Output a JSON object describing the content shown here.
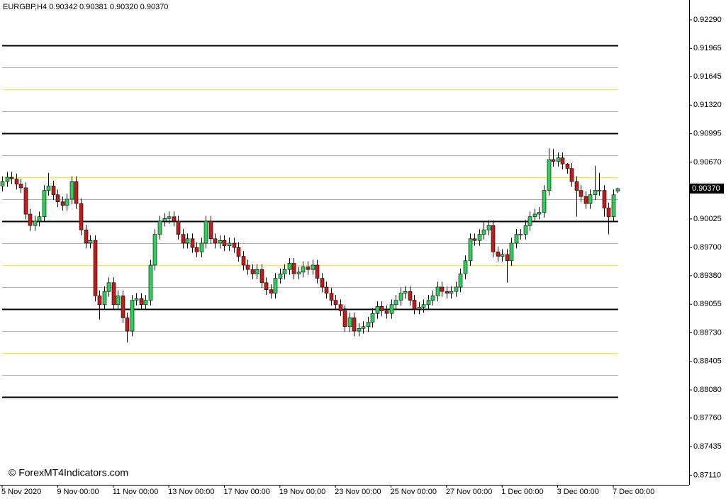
{
  "chart_data": {
    "type": "candlestick",
    "title": "EURGBP,H4  0.90342 0.90381 0.90320 0.90370",
    "watermark": "© ForexMT4Indicators.com",
    "up_color": "#2fcf5a",
    "down_color": "#c41a1a",
    "wick_color": "#000000",
    "categories": [
      "5 Nov 2020",
      null,
      null,
      null,
      null,
      null,
      null,
      null,
      null,
      null,
      null,
      null,
      "9 Nov 00:00",
      null,
      null,
      null,
      null,
      null,
      null,
      null,
      null,
      null,
      null,
      null,
      "11 Nov 00:00",
      null,
      null,
      null,
      null,
      null,
      null,
      null,
      null,
      null,
      null,
      null,
      "13 Nov 00:00",
      null,
      null,
      null,
      null,
      null,
      null,
      null,
      null,
      null,
      null,
      null,
      "17 Nov 00:00",
      null,
      null,
      null,
      null,
      null,
      null,
      null,
      null,
      null,
      null,
      null,
      "19 Nov 00:00",
      null,
      null,
      null,
      null,
      null,
      null,
      null,
      null,
      null,
      null,
      null,
      "23 Nov 00:00",
      null,
      null,
      null,
      null,
      null,
      null,
      null,
      null,
      null,
      null,
      null,
      "25 Nov 00:00",
      null,
      null,
      null,
      null,
      null,
      null,
      null,
      null,
      null,
      null,
      null,
      "27 Nov 00:00",
      null,
      null,
      null,
      null,
      null,
      null,
      null,
      null,
      null,
      null,
      null,
      "1 Dec 00:00",
      null,
      null,
      null,
      null,
      null,
      null,
      null,
      null,
      null,
      null,
      null,
      "3 Dec 00:00",
      null,
      null,
      null,
      null,
      null,
      null,
      null,
      null,
      null,
      null,
      null,
      "7 Dec 00:00",
      null
    ],
    "open": [
      0.904,
      0.9045,
      0.905,
      0.9048,
      0.9042,
      0.9038,
      0.9008,
      0.8995,
      0.9,
      0.9005,
      0.9035,
      0.904,
      0.903,
      0.9022,
      0.9018,
      0.9025,
      0.9045,
      0.902,
      0.899,
      0.8975,
      0.8978,
      0.8915,
      0.8905,
      0.892,
      0.893,
      0.8905,
      0.8915,
      0.889,
      0.8875,
      0.891,
      0.8912,
      0.8905,
      0.891,
      0.895,
      0.8985,
      0.9,
      0.9003,
      0.9005,
      0.9,
      0.8985,
      0.8975,
      0.898,
      0.897,
      0.8965,
      0.8975,
      0.9,
      0.898,
      0.8975,
      0.8978,
      0.8972,
      0.8975,
      0.897,
      0.896,
      0.895,
      0.8945,
      0.894,
      0.8945,
      0.893,
      0.8922,
      0.8918,
      0.8935,
      0.894,
      0.8945,
      0.8952,
      0.894,
      0.8942,
      0.8948,
      0.8945,
      0.895,
      0.8935,
      0.8925,
      0.8918,
      0.891,
      0.8905,
      0.8898,
      0.888,
      0.889,
      0.8875,
      0.8878,
      0.888,
      0.8885,
      0.8895,
      0.8903,
      0.8898,
      0.8895,
      0.8905,
      0.891,
      0.8918,
      0.892,
      0.891,
      0.89,
      0.8902,
      0.8905,
      0.891,
      0.8915,
      0.8925,
      0.892,
      0.8918,
      0.892,
      0.8925,
      0.894,
      0.8955,
      0.898,
      0.8978,
      0.8985,
      0.899,
      0.8995,
      0.8965,
      0.896,
      0.8962,
      0.8955,
      0.8975,
      0.8985,
      0.8985,
      0.8995,
      0.9005,
      0.9008,
      0.901,
      0.9035,
      0.907,
      0.9068,
      0.9072,
      0.9065,
      0.906,
      0.9045,
      0.9035,
      0.9028,
      0.902,
      0.903,
      0.9035,
      0.9035,
      0.9015,
      0.9005,
      0.90342
    ],
    "high": [
      0.9051,
      0.9056,
      0.9056,
      0.9054,
      0.9048,
      0.9044,
      0.9014,
      0.9006,
      0.9011,
      0.9041,
      0.9055,
      0.9046,
      0.9036,
      0.9028,
      0.9031,
      0.9051,
      0.9051,
      0.9026,
      0.8996,
      0.8984,
      0.8984,
      0.8921,
      0.8926,
      0.8936,
      0.8936,
      0.8921,
      0.8921,
      0.8896,
      0.8916,
      0.8918,
      0.8918,
      0.8916,
      0.8956,
      0.8991,
      0.9006,
      0.9009,
      0.9011,
      0.9011,
      0.9006,
      0.8991,
      0.8986,
      0.8986,
      0.8976,
      0.8981,
      0.9006,
      0.9006,
      0.8986,
      0.8984,
      0.8984,
      0.8981,
      0.8981,
      0.8976,
      0.8966,
      0.8956,
      0.8951,
      0.8951,
      0.8951,
      0.8936,
      0.8928,
      0.8941,
      0.8946,
      0.8951,
      0.8958,
      0.8958,
      0.8948,
      0.8954,
      0.8954,
      0.8956,
      0.8956,
      0.8941,
      0.8931,
      0.8924,
      0.8916,
      0.8911,
      0.8904,
      0.8896,
      0.8896,
      0.8884,
      0.8886,
      0.8891,
      0.8901,
      0.8909,
      0.8909,
      0.8904,
      0.8911,
      0.8916,
      0.8924,
      0.8926,
      0.8926,
      0.8916,
      0.8908,
      0.8911,
      0.8916,
      0.8921,
      0.8931,
      0.8931,
      0.8926,
      0.8926,
      0.8931,
      0.8946,
      0.8961,
      0.8986,
      0.8986,
      0.8991,
      0.9,
      0.9001,
      0.9001,
      0.8971,
      0.8968,
      0.8968,
      0.8981,
      0.8991,
      0.8991,
      0.9001,
      0.9011,
      0.9014,
      0.9016,
      0.9041,
      0.9083,
      0.9082,
      0.9078,
      0.9078,
      0.9066,
      0.9066,
      0.9051,
      0.9041,
      0.9034,
      0.9036,
      0.9063,
      0.9055,
      0.9041,
      0.9021,
      0.9036,
      0.90381
    ],
    "low": [
      0.9034,
      0.9039,
      0.9042,
      0.9036,
      0.9032,
      0.9002,
      0.8989,
      0.8989,
      0.8994,
      0.8999,
      0.9029,
      0.9024,
      0.9016,
      0.9012,
      0.9012,
      0.9019,
      0.9014,
      0.8984,
      0.8969,
      0.8969,
      0.8909,
      0.8888,
      0.8899,
      0.8914,
      0.8899,
      0.8899,
      0.8884,
      0.8862,
      0.8869,
      0.8904,
      0.8899,
      0.8899,
      0.8904,
      0.8944,
      0.8979,
      0.8994,
      0.8997,
      0.8994,
      0.8979,
      0.8969,
      0.8969,
      0.8964,
      0.8959,
      0.8959,
      0.8969,
      0.8974,
      0.8969,
      0.8969,
      0.8966,
      0.8966,
      0.8964,
      0.8954,
      0.8944,
      0.8939,
      0.8934,
      0.8934,
      0.8924,
      0.8916,
      0.8912,
      0.8912,
      0.8929,
      0.8934,
      0.8939,
      0.8934,
      0.8934,
      0.8936,
      0.8939,
      0.8939,
      0.8929,
      0.8919,
      0.8912,
      0.8904,
      0.8899,
      0.8892,
      0.8874,
      0.8874,
      0.8869,
      0.8869,
      0.8872,
      0.8874,
      0.8879,
      0.8889,
      0.8892,
      0.8889,
      0.8889,
      0.8899,
      0.8904,
      0.8912,
      0.8904,
      0.8894,
      0.8894,
      0.8896,
      0.8899,
      0.8904,
      0.8909,
      0.8914,
      0.8912,
      0.8912,
      0.8914,
      0.8919,
      0.8934,
      0.8949,
      0.8972,
      0.8972,
      0.8979,
      0.8984,
      0.8959,
      0.8954,
      0.8954,
      0.893,
      0.8949,
      0.8969,
      0.8979,
      0.8979,
      0.8989,
      0.8999,
      0.9002,
      0.9004,
      0.9029,
      0.9062,
      0.9062,
      0.9059,
      0.9054,
      0.9039,
      0.9005,
      0.9022,
      0.9014,
      0.9014,
      0.9024,
      0.9029,
      0.9005,
      0.8985,
      0.8999,
      0.9032
    ],
    "close": [
      0.9045,
      0.905,
      0.9048,
      0.9042,
      0.9038,
      0.9008,
      0.8995,
      0.9,
      0.9005,
      0.9035,
      0.904,
      0.903,
      0.9022,
      0.9018,
      0.9025,
      0.9045,
      0.902,
      0.899,
      0.8975,
      0.8978,
      0.8915,
      0.8905,
      0.892,
      0.893,
      0.8905,
      0.8915,
      0.889,
      0.8875,
      0.891,
      0.8912,
      0.8905,
      0.891,
      0.895,
      0.8985,
      0.9,
      0.9003,
      0.9005,
      0.9,
      0.8985,
      0.8975,
      0.898,
      0.897,
      0.8965,
      0.8975,
      0.9,
      0.898,
      0.8975,
      0.8978,
      0.8972,
      0.8975,
      0.897,
      0.896,
      0.895,
      0.8945,
      0.894,
      0.8945,
      0.893,
      0.8922,
      0.8918,
      0.8935,
      0.894,
      0.8945,
      0.8952,
      0.894,
      0.8942,
      0.8948,
      0.8945,
      0.895,
      0.8935,
      0.8925,
      0.8918,
      0.891,
      0.8905,
      0.8898,
      0.888,
      0.889,
      0.8875,
      0.8878,
      0.888,
      0.8885,
      0.8895,
      0.8903,
      0.8898,
      0.8895,
      0.8905,
      0.891,
      0.8918,
      0.892,
      0.891,
      0.89,
      0.8902,
      0.8905,
      0.891,
      0.8915,
      0.8925,
      0.892,
      0.8918,
      0.892,
      0.8925,
      0.894,
      0.8955,
      0.898,
      0.8978,
      0.8985,
      0.899,
      0.8995,
      0.8965,
      0.896,
      0.8962,
      0.8955,
      0.8975,
      0.8985,
      0.8985,
      0.8995,
      0.9005,
      0.9008,
      0.901,
      0.9035,
      0.907,
      0.9068,
      0.9072,
      0.9065,
      0.906,
      0.9045,
      0.9035,
      0.9028,
      0.902,
      0.903,
      0.9035,
      0.9035,
      0.9015,
      0.9005,
      0.903,
      0.9037
    ],
    "levels": [
      {
        "value": 0.92,
        "color": "#000000"
      },
      {
        "value": 0.9175,
        "color": "#7fd17f"
      },
      {
        "value": 0.915,
        "color": "#efe36a"
      },
      {
        "value": 0.9125,
        "color": "#7fd17f"
      },
      {
        "value": 0.91,
        "color": "#000000"
      },
      {
        "value": 0.9075,
        "color": "#7fd17f"
      },
      {
        "value": 0.905,
        "color": "#efe36a"
      },
      {
        "value": 0.9025,
        "color": "#7fd17f"
      },
      {
        "value": 0.9,
        "color": "#000000"
      },
      {
        "value": 0.8975,
        "color": "#7fd17f"
      },
      {
        "value": 0.895,
        "color": "#efe36a"
      },
      {
        "value": 0.8925,
        "color": "#7fd17f"
      },
      {
        "value": 0.89,
        "color": "#000000"
      },
      {
        "value": 0.8875,
        "color": "#7fd17f"
      },
      {
        "value": 0.885,
        "color": "#efe36a"
      },
      {
        "value": 0.8825,
        "color": "#7fd17f"
      },
      {
        "value": 0.88,
        "color": "#000000"
      }
    ],
    "current_price": {
      "value": 0.9037,
      "label": "0.90370"
    },
    "ylim": [
      0.87,
      0.92516
    ],
    "yticks": [
      {
        "value": 0.9229,
        "label": "0.92290"
      },
      {
        "value": 0.91965,
        "label": "0.91965"
      },
      {
        "value": 0.91645,
        "label": "0.91645"
      },
      {
        "value": 0.9132,
        "label": "0.91320"
      },
      {
        "value": 0.90995,
        "label": "0.90995"
      },
      {
        "value": 0.9067,
        "label": "0.90670"
      },
      {
        "value": 0.90025,
        "label": "0.90025"
      },
      {
        "value": 0.897,
        "label": "0.89700"
      },
      {
        "value": 0.8938,
        "label": "0.89380"
      },
      {
        "value": 0.89055,
        "label": "0.89055"
      },
      {
        "value": 0.8873,
        "label": "0.88730"
      },
      {
        "value": 0.88405,
        "label": "0.88405"
      },
      {
        "value": 0.8808,
        "label": "0.88080"
      },
      {
        "value": 0.8776,
        "label": "0.87760"
      },
      {
        "value": 0.87435,
        "label": "0.87435"
      },
      {
        "value": 0.8711,
        "label": "0.87110"
      }
    ]
  }
}
